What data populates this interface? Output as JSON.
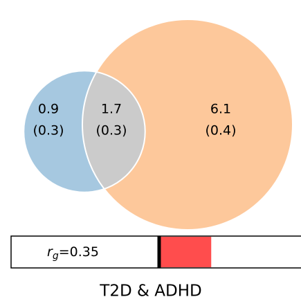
{
  "chart_data": {
    "type": "venn",
    "title": "T2D & ADHD",
    "regions": [
      {
        "value": 0.9,
        "se_label": "(0.3)",
        "color": "#a6c8e0"
      },
      {
        "value": 1.7,
        "se_label": "(0.3)",
        "color": "#cbcbcb"
      },
      {
        "value": 6.1,
        "se_label": "(0.4)",
        "color": "#fdc89b"
      }
    ],
    "rg": {
      "symbol": "r",
      "subscript": "g",
      "label": "=0.35",
      "value": 0.35,
      "xlim": [
        -1,
        1
      ],
      "color": "#ff4d4d"
    }
  }
}
